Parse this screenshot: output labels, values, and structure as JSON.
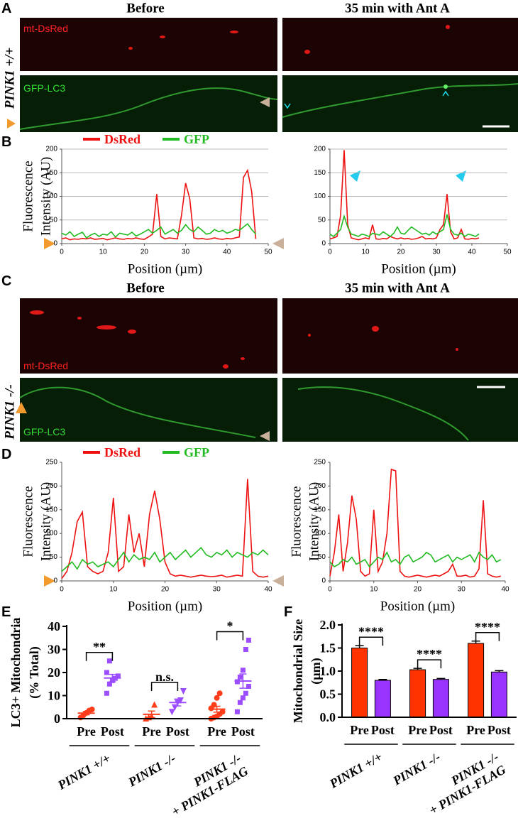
{
  "images": [
    {
      "label": "A",
      "titles": [
        "Before",
        "35 min with Ant A"
      ],
      "genotype": "PINK1 +/+",
      "channels": [
        "mt-DsRed",
        "GFP-LC3"
      ]
    },
    {
      "label": "C",
      "titles": [
        "Before",
        "35 min with Ant A"
      ],
      "genotype": "PINK1 -/-",
      "channels": [
        "mt-DsRed",
        "GFP-LC3"
      ]
    }
  ],
  "chart_data": [
    {
      "type": "line",
      "label": "B",
      "legend": "top",
      "grid": true,
      "ylabel": [
        "Fluorescence",
        "Intensity (AU)"
      ],
      "xlabel": "Position (µm)",
      "xlim": [
        0,
        50
      ],
      "xticks": [
        0,
        10,
        20,
        30,
        40,
        50
      ],
      "ylim": [
        0,
        200
      ],
      "yticks": [
        0,
        50,
        100,
        150,
        200
      ],
      "x": [
        0,
        1,
        2,
        3,
        4,
        5,
        6,
        7,
        8,
        9,
        10,
        11,
        12,
        13,
        14,
        15,
        16,
        17,
        18,
        19,
        20,
        21,
        22,
        23,
        24,
        25,
        26,
        27,
        28,
        29,
        30,
        31,
        32,
        33,
        34,
        35,
        36,
        37,
        38,
        39,
        40,
        41,
        42,
        43,
        44,
        45,
        46,
        47
      ],
      "series": [
        {
          "name": "DsRed",
          "color": "#ee1111",
          "values": [
            10,
            12,
            8,
            10,
            9,
            11,
            10,
            12,
            9,
            10,
            11,
            8,
            10,
            12,
            10,
            9,
            11,
            10,
            12,
            10,
            9,
            14,
            20,
            105,
            15,
            10,
            12,
            11,
            10,
            60,
            128,
            95,
            12,
            10,
            11,
            9,
            10,
            12,
            10,
            9,
            11,
            10,
            12,
            14,
            140,
            155,
            110,
            10
          ]
        },
        {
          "name": "GFP",
          "color": "#22bb22",
          "values": [
            22,
            18,
            25,
            15,
            20,
            24,
            12,
            18,
            22,
            15,
            20,
            18,
            25,
            14,
            22,
            20,
            18,
            24,
            16,
            20,
            25,
            30,
            22,
            28,
            35,
            20,
            25,
            30,
            22,
            28,
            40,
            30,
            25,
            35,
            28,
            20,
            22,
            30,
            25,
            28,
            22,
            25,
            30,
            28,
            35,
            42,
            30,
            20
          ]
        }
      ]
    },
    {
      "type": "line",
      "grid": true,
      "xlabel": "Position (µm)",
      "xlim": [
        0,
        50
      ],
      "xticks": [
        0,
        10,
        20,
        30,
        40,
        50
      ],
      "ylim": [
        0,
        200
      ],
      "yticks": [
        0,
        50,
        100,
        150,
        200
      ],
      "x": [
        0,
        1,
        2,
        3,
        4,
        5,
        6,
        7,
        8,
        9,
        10,
        11,
        12,
        13,
        14,
        15,
        16,
        17,
        18,
        19,
        20,
        21,
        22,
        23,
        24,
        25,
        26,
        27,
        28,
        29,
        30,
        31,
        32,
        33,
        34,
        35,
        36,
        37,
        38,
        39,
        40,
        41,
        42
      ],
      "series": [
        {
          "color": "#ee1111",
          "values": [
            10,
            12,
            15,
            60,
            198,
            40,
            12,
            10,
            8,
            10,
            12,
            10,
            40,
            10,
            9,
            11,
            10,
            15,
            12,
            10,
            12,
            10,
            11,
            9,
            10,
            12,
            15,
            10,
            11,
            10,
            12,
            30,
            40,
            105,
            25,
            10,
            12,
            30,
            10,
            9,
            11,
            10,
            12
          ]
        },
        {
          "color": "#22bb22",
          "values": [
            20,
            15,
            22,
            30,
            58,
            35,
            20,
            18,
            15,
            20,
            18,
            15,
            22,
            20,
            18,
            25,
            20,
            15,
            22,
            35,
            22,
            20,
            28,
            35,
            30,
            25,
            20,
            22,
            18,
            25,
            20,
            25,
            30,
            62,
            30,
            20,
            18,
            22,
            15,
            20,
            18,
            15,
            20
          ]
        }
      ]
    },
    {
      "type": "line",
      "label": "D",
      "legend": "top",
      "grid": false,
      "ylabel": [
        "Fluorescence",
        "Intensity (AU)"
      ],
      "xlabel": "Position (µm)",
      "xlim": [
        0,
        40
      ],
      "xticks": [
        0,
        10,
        20,
        30,
        40
      ],
      "ylim": [
        0,
        250
      ],
      "yticks": [
        0,
        50,
        100,
        150,
        200,
        250
      ],
      "x": [
        0,
        1,
        2,
        3,
        4,
        5,
        6,
        7,
        8,
        9,
        10,
        11,
        12,
        13,
        14,
        15,
        16,
        17,
        18,
        19,
        20,
        21,
        22,
        23,
        24,
        25,
        26,
        27,
        28,
        29,
        30,
        31,
        32,
        33,
        34,
        35,
        36,
        37,
        38,
        39,
        40
      ],
      "series": [
        {
          "name": "DsRed",
          "color": "#ee1111",
          "values": [
            5,
            20,
            60,
            125,
            145,
            30,
            20,
            15,
            20,
            60,
            175,
            20,
            30,
            140,
            60,
            100,
            30,
            140,
            190,
            130,
            40,
            15,
            10,
            12,
            10,
            8,
            10,
            12,
            10,
            9,
            10,
            12,
            8,
            10,
            12,
            10,
            215,
            20,
            10,
            8,
            10
          ]
        },
        {
          "name": "GFP",
          "color": "#22bb22",
          "values": [
            20,
            30,
            40,
            25,
            45,
            35,
            40,
            30,
            35,
            40,
            30,
            45,
            60,
            40,
            55,
            45,
            50,
            45,
            60,
            40,
            50,
            60,
            45,
            55,
            65,
            50,
            60,
            70,
            55,
            50,
            60,
            55,
            65,
            50,
            60,
            55,
            50,
            60,
            55,
            65,
            55
          ]
        }
      ]
    },
    {
      "type": "line",
      "grid": false,
      "ylabel": [
        "Fluorescence",
        "Intensity (AU)"
      ],
      "xlabel": "Position (µm)",
      "xlim": [
        0,
        40
      ],
      "xticks": [
        0,
        10,
        20,
        30,
        40
      ],
      "ylim": [
        0,
        250
      ],
      "yticks": [
        0,
        50,
        100,
        150,
        200,
        250
      ],
      "x": [
        0,
        1,
        2,
        3,
        4,
        5,
        6,
        7,
        8,
        9,
        10,
        11,
        12,
        13,
        14,
        15,
        16,
        17,
        18,
        19,
        20,
        21,
        22,
        23,
        24,
        25,
        26,
        27,
        28,
        29,
        30,
        31,
        32,
        33,
        34,
        35,
        36,
        37,
        38,
        39
      ],
      "series": [
        {
          "color": "#ee1111",
          "values": [
            10,
            60,
            140,
            20,
            80,
            180,
            130,
            20,
            10,
            15,
            150,
            20,
            40,
            100,
            235,
            232,
            20,
            10,
            8,
            10,
            12,
            10,
            8,
            10,
            12,
            10,
            15,
            20,
            35,
            10,
            10,
            12,
            8,
            10,
            25,
            170,
            15,
            10,
            8,
            10
          ]
        },
        {
          "color": "#22bb22",
          "values": [
            40,
            30,
            35,
            45,
            40,
            50,
            35,
            40,
            45,
            30,
            40,
            50,
            45,
            60,
            40,
            45,
            35,
            50,
            55,
            40,
            45,
            50,
            60,
            55,
            40,
            45,
            50,
            55,
            40,
            50,
            45,
            50,
            55,
            40,
            60,
            50,
            45,
            55,
            40,
            45
          ]
        }
      ]
    },
    {
      "type": "dot",
      "label": "E",
      "ylabel": [
        "LC3+ Mitochondria",
        "(% Total)"
      ],
      "ylim": [
        0,
        40
      ],
      "yticks": [
        0,
        10,
        20,
        30,
        40
      ],
      "categories": [
        "Pre",
        "Post",
        "Pre",
        "Post",
        "Pre",
        "Post"
      ],
      "groups": [
        [
          "PINK1 +/+"
        ],
        [
          "PINK1 -/-"
        ],
        [
          "PINK1 -/-",
          "+ PINK1-FLAG"
        ]
      ],
      "significance": [
        "**",
        "n.s.",
        "*"
      ],
      "colors": [
        "#ff3d1a",
        "#9b4dff",
        "#ff3d1a",
        "#9b4dff",
        "#ff3d1a",
        "#9b4dff"
      ],
      "markers": [
        "circle",
        "square",
        "triangle",
        "triangle-down",
        "circle",
        "square"
      ],
      "points": [
        [
          0.5,
          1.5,
          2.5,
          3.5,
          4
        ],
        [
          11,
          15,
          16.5,
          17.5,
          18.5,
          20,
          25
        ],
        [
          0,
          0.5,
          1,
          6
        ],
        [
          3,
          5,
          7,
          8,
          12
        ],
        [
          0,
          0.5,
          1,
          2,
          3,
          4.5,
          6,
          9,
          11
        ],
        [
          3,
          7,
          9,
          11,
          14,
          16,
          18,
          21,
          30,
          34
        ]
      ],
      "means": [
        2.4,
        17.6,
        1.9,
        7,
        4.1,
        16.3
      ],
      "sems": [
        0.7,
        1.6,
        1.4,
        1.5,
        1.3,
        3.1
      ]
    },
    {
      "type": "bar",
      "label": "F",
      "ylabel": [
        "Mitochondrial Size",
        "(µm)"
      ],
      "ylim": [
        0,
        2
      ],
      "yticks": [
        {
          "value": 0,
          "label": "0.0"
        },
        {
          "value": 0.5,
          "label": "0.5"
        },
        {
          "value": 1,
          "label": "1.0"
        },
        {
          "value": 1.5,
          "label": "1.5"
        },
        {
          "value": 2,
          "label": "2.0"
        }
      ],
      "categories": [
        "Pre",
        "Post",
        "Pre",
        "Post",
        "Pre",
        "Post"
      ],
      "groups": [
        [
          "PINK1 +/+"
        ],
        [
          "PINK1 -/-"
        ],
        [
          "PINK1 -/-",
          "+ PINK1-FLAG"
        ]
      ],
      "significance": [
        "****",
        "****",
        "****"
      ],
      "colors": [
        "#ff3300",
        "#9933ff",
        "#ff3300",
        "#9933ff",
        "#ff3300",
        "#9933ff"
      ],
      "values": [
        1.5,
        0.8,
        1.03,
        0.82,
        1.6,
        0.98
      ],
      "errors": [
        0.05,
        0.02,
        0.03,
        0.02,
        0.05,
        0.03
      ]
    }
  ]
}
